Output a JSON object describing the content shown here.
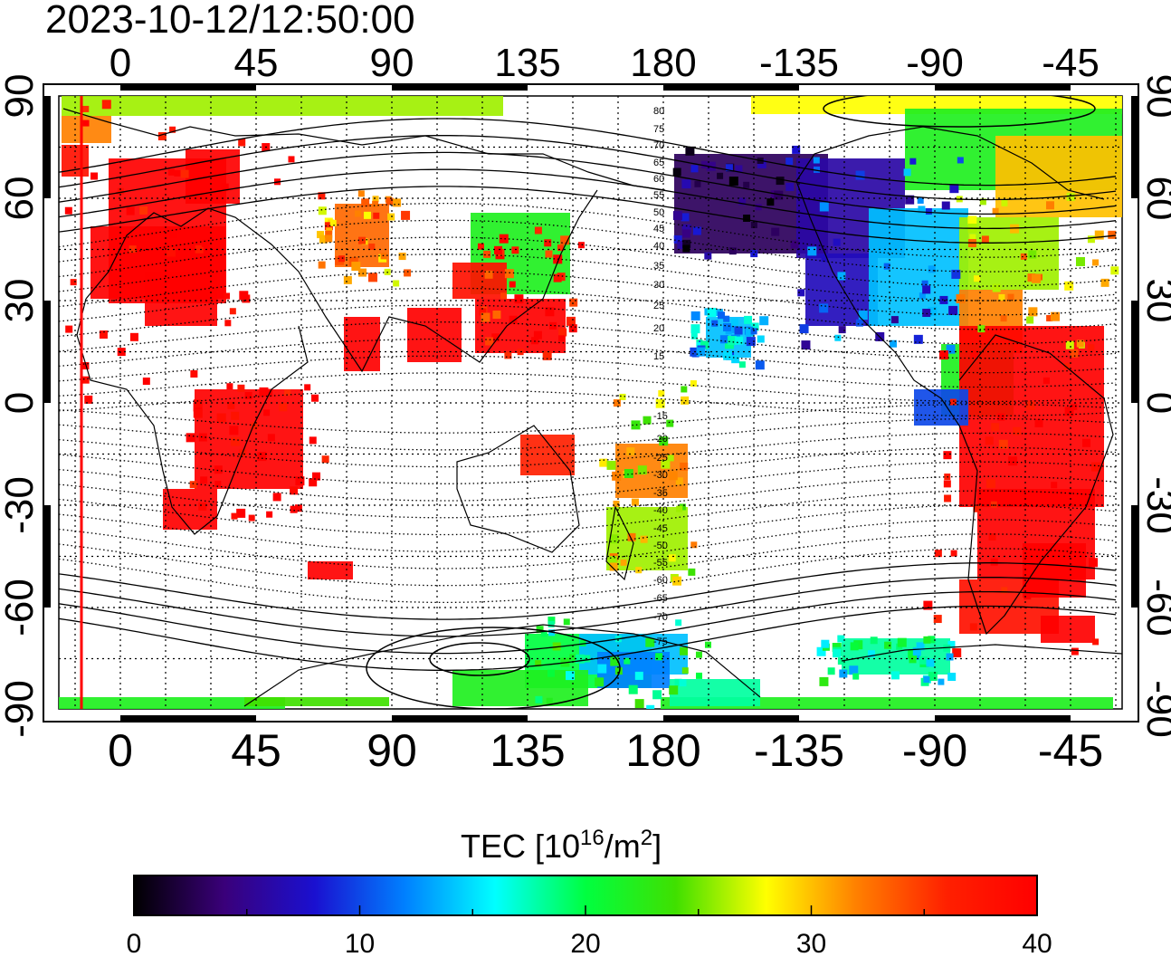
{
  "title": "2023-10-12/12:50:00",
  "map": {
    "lon_ticks": [
      "0",
      "45",
      "90",
      "135",
      "180",
      "-135",
      "-90",
      "-45"
    ],
    "lat_ticks": [
      "90",
      "60",
      "30",
      "0",
      "-30",
      "-60",
      "-90"
    ],
    "magnetic_lat_labels": [
      "80",
      "75",
      "70",
      "65",
      "60",
      "55",
      "50",
      "45",
      "40",
      "35",
      "30",
      "25",
      "20",
      "15",
      "-15",
      "-20",
      "-25",
      "-30",
      "-35",
      "-40",
      "-45",
      "-50",
      "-55",
      "-60",
      "-65",
      "-70",
      "-75"
    ],
    "terminator_color": "#ff0000"
  },
  "colorbar": {
    "title_main": "TEC  [10",
    "title_exp1": "16",
    "title_mid": "/m",
    "title_exp2": "2",
    "title_end": "]",
    "tick_labels": [
      "0",
      "10",
      "20",
      "30",
      "40"
    ],
    "min": 0,
    "max": 40,
    "colors": [
      "#000000",
      "#3a007a",
      "#1a10d0",
      "#0080ff",
      "#00ffff",
      "#00ff40",
      "#40e000",
      "#ffff00",
      "#ff8000",
      "#ff2000",
      "#ff0000"
    ]
  }
}
